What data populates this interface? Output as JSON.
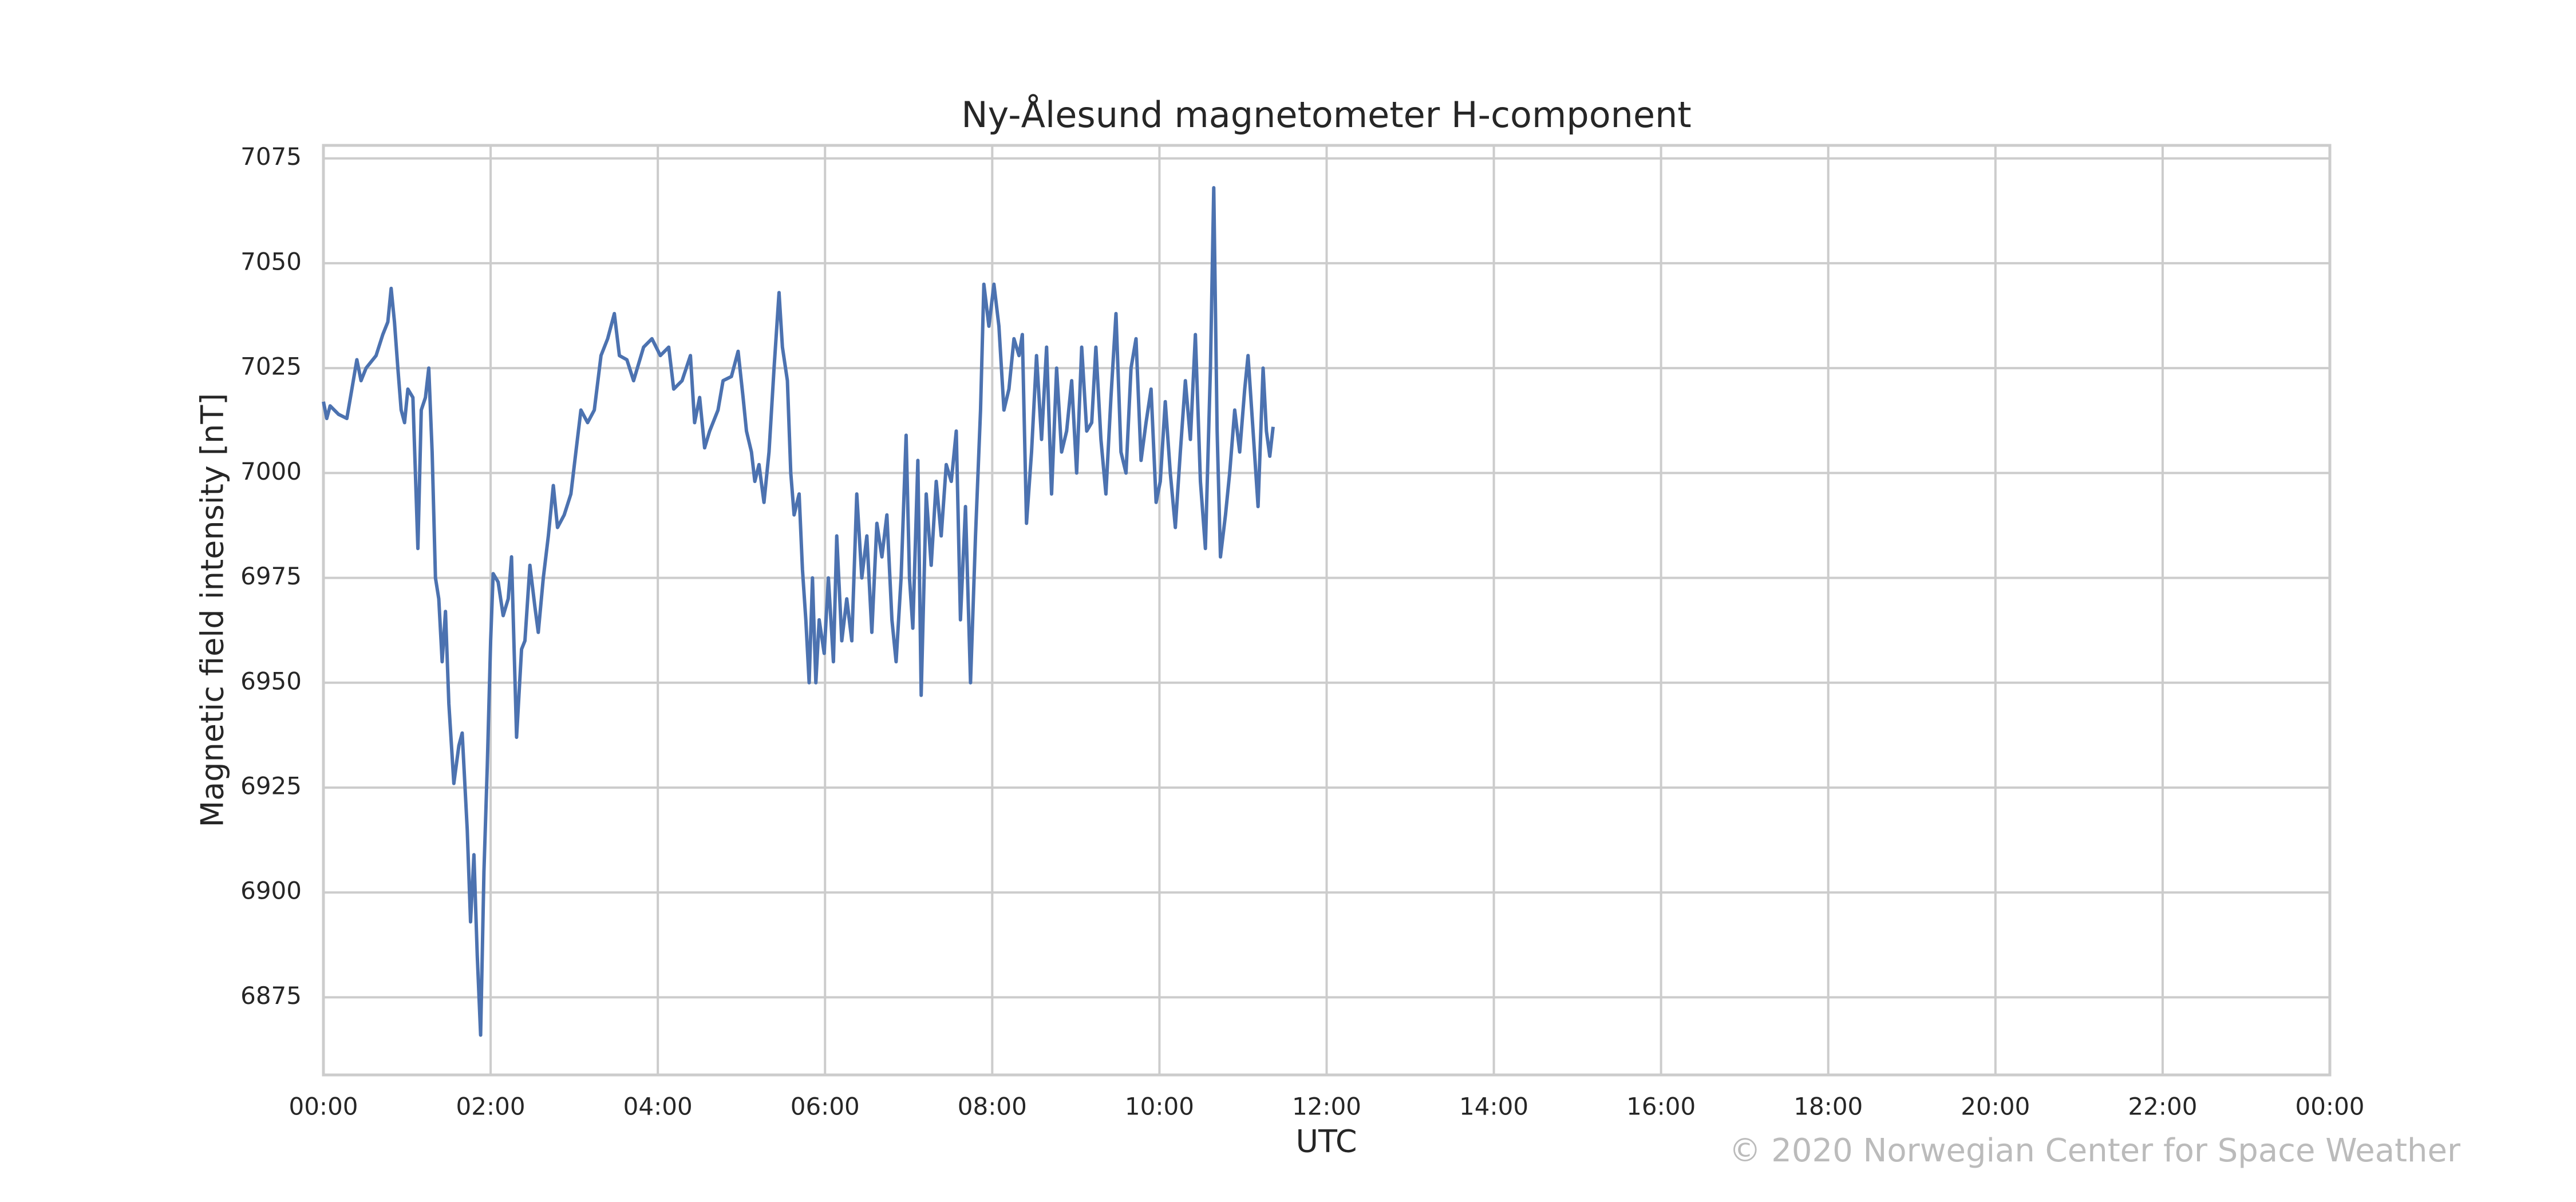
{
  "chart_data": {
    "type": "line",
    "title": "Ny-Ålesund magnetometer H-component",
    "xlabel": "UTC",
    "ylabel": "Magnetic field intensity [nT]",
    "credit": "© 2020 Norwegian Center for Space Weather",
    "grid": true,
    "xlim": [
      0,
      24
    ],
    "xticks": [
      {
        "value": 0,
        "label": "00:00"
      },
      {
        "value": 2,
        "label": "02:00"
      },
      {
        "value": 4,
        "label": "04:00"
      },
      {
        "value": 6,
        "label": "06:00"
      },
      {
        "value": 8,
        "label": "08:00"
      },
      {
        "value": 10,
        "label": "10:00"
      },
      {
        "value": 12,
        "label": "12:00"
      },
      {
        "value": 14,
        "label": "14:00"
      },
      {
        "value": 16,
        "label": "16:00"
      },
      {
        "value": 18,
        "label": "18:00"
      },
      {
        "value": 20,
        "label": "20:00"
      },
      {
        "value": 22,
        "label": "22:00"
      },
      {
        "value": 24,
        "label": "00:00"
      }
    ],
    "ylim": [
      6856.5,
      7078.1
    ],
    "yticks": [
      6875,
      6900,
      6925,
      6950,
      6975,
      7000,
      7025,
      7050,
      7075
    ],
    "color": "#4c72b0",
    "x": [
      0,
      0.04,
      0.08,
      0.18,
      0.28,
      0.34,
      0.4,
      0.45,
      0.51,
      0.63,
      0.71,
      0.77,
      0.81,
      0.85,
      0.89,
      0.93,
      0.97,
      1.01,
      1.07,
      1.13,
      1.17,
      1.22,
      1.26,
      1.3,
      1.34,
      1.38,
      1.42,
      1.46,
      1.5,
      1.56,
      1.62,
      1.66,
      1.72,
      1.76,
      1.8,
      1.84,
      1.88,
      1.92,
      1.96,
      2.0,
      2.03,
      2.09,
      2.15,
      2.21,
      2.25,
      2.31,
      2.37,
      2.41,
      2.47,
      2.53,
      2.57,
      2.63,
      2.69,
      2.75,
      2.8,
      2.88,
      2.96,
      3.02,
      3.08,
      3.16,
      3.24,
      3.32,
      3.4,
      3.48,
      3.54,
      3.63,
      3.71,
      3.83,
      3.93,
      4.03,
      4.13,
      4.19,
      4.29,
      4.39,
      4.44,
      4.5,
      4.56,
      4.62,
      4.72,
      4.78,
      4.88,
      4.96,
      5.02,
      5.06,
      5.12,
      5.16,
      5.21,
      5.27,
      5.33,
      5.39,
      5.45,
      5.49,
      5.55,
      5.59,
      5.63,
      5.69,
      5.73,
      5.77,
      5.81,
      5.85,
      5.89,
      5.93,
      5.99,
      6.04,
      6.1,
      6.14,
      6.2,
      6.26,
      6.32,
      6.38,
      6.44,
      6.5,
      6.56,
      6.62,
      6.68,
      6.74,
      6.8,
      6.85,
      6.91,
      6.97,
      7.01,
      7.05,
      7.11,
      7.15,
      7.21,
      7.27,
      7.33,
      7.39,
      7.45,
      7.51,
      7.57,
      7.62,
      7.68,
      7.74,
      7.8,
      7.86,
      7.9,
      7.96,
      8.02,
      8.08,
      8.14,
      8.2,
      8.26,
      8.32,
      8.36,
      8.41,
      8.47,
      8.53,
      8.59,
      8.65,
      8.71,
      8.77,
      8.83,
      8.89,
      8.95,
      9.01,
      9.07,
      9.13,
      9.19,
      9.24,
      9.3,
      9.36,
      9.42,
      9.48,
      9.54,
      9.6,
      9.66,
      9.72,
      9.78,
      9.84,
      9.9,
      9.96,
      10.01,
      10.07,
      10.13,
      10.19,
      10.25,
      10.31,
      10.37,
      10.43,
      10.49,
      10.55,
      10.61,
      10.65,
      10.69,
      10.73,
      10.79,
      10.84,
      10.9,
      10.96,
      11.02,
      11.06,
      11.12,
      11.18,
      11.24,
      11.28,
      11.32,
      11.36
    ],
    "values": [
      7017,
      7013,
      7016,
      7014,
      7013,
      7020,
      7027,
      7022,
      7025,
      7028,
      7033,
      7036,
      7044,
      7036,
      7025,
      7015,
      7012,
      7020,
      7018,
      6982,
      7015,
      7018,
      7025,
      7005,
      6975,
      6970,
      6955,
      6967,
      6945,
      6926,
      6935,
      6938,
      6915,
      6893,
      6909,
      6885,
      6866,
      6905,
      6930,
      6960,
      6976,
      6974,
      6966,
      6970,
      6980,
      6937,
      6958,
      6960,
      6978,
      6968,
      6962,
      6975,
      6985,
      6997,
      6987,
      6990,
      6995,
      7005,
      7015,
      7012,
      7015,
      7028,
      7032,
      7038,
      7028,
      7027,
      7022,
      7030,
      7032,
      7028,
      7030,
      7020,
      7022,
      7028,
      7012,
      7018,
      7006,
      7010,
      7015,
      7022,
      7023,
      7029,
      7018,
      7010,
      7005,
      6998,
      7002,
      6993,
      7005,
      7025,
      7043,
      7030,
      7022,
      7000,
      6990,
      6995,
      6977,
      6965,
      6950,
      6975,
      6950,
      6965,
      6957,
      6975,
      6955,
      6985,
      6960,
      6970,
      6960,
      6995,
      6975,
      6985,
      6962,
      6988,
      6980,
      6990,
      6965,
      6955,
      6975,
      7009,
      6975,
      6963,
      7003,
      6947,
      6995,
      6978,
      6998,
      6985,
      7002,
      6998,
      7010,
      6965,
      6992,
      6950,
      6985,
      7015,
      7045,
      7035,
      7045,
      7035,
      7015,
      7020,
      7032,
      7028,
      7033,
      6988,
      7005,
      7028,
      7008,
      7030,
      6995,
      7025,
      7005,
      7010,
      7022,
      7000,
      7030,
      7010,
      7012,
      7030,
      7008,
      6995,
      7018,
      7038,
      7005,
      7000,
      7025,
      7032,
      7003,
      7012,
      7020,
      6993,
      6998,
      7017,
      7000,
      6987,
      7005,
      7022,
      7008,
      7033,
      6998,
      6982,
      7025,
      7068,
      7010,
      6980,
      6990,
      7000,
      7015,
      7005,
      7020,
      7028,
      7010,
      6992,
      7025,
      7010,
      7004,
      7011
    ]
  }
}
